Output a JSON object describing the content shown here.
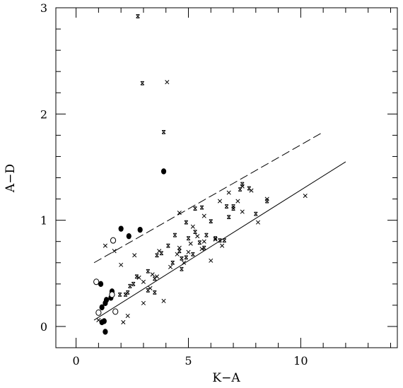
{
  "chart_data": {
    "type": "scatter",
    "title": "",
    "xlabel": "K−A",
    "ylabel": "A−D",
    "xlim": [
      -0.9,
      14.3
    ],
    "ylim": [
      -0.2,
      3.0
    ],
    "x_ticks": [
      0,
      5,
      10
    ],
    "y_ticks": [
      0,
      1,
      2,
      3
    ],
    "x_tick_labels": [
      "0",
      "5",
      "10"
    ],
    "y_tick_labels": [
      "0",
      "1",
      "2",
      "3"
    ],
    "grid": false,
    "legend": "none",
    "series": [
      {
        "marker": "filled-circle",
        "points": [
          [
            2.0,
            0.92
          ],
          [
            2.35,
            0.85
          ],
          [
            2.85,
            0.91
          ],
          [
            3.9,
            1.46
          ],
          [
            1.6,
            0.33
          ],
          [
            1.55,
            0.27
          ],
          [
            1.35,
            0.25
          ],
          [
            1.3,
            0.22
          ],
          [
            1.15,
            0.18
          ],
          [
            1.25,
            0.05
          ],
          [
            1.15,
            0.04
          ],
          [
            1.1,
            0.4
          ],
          [
            1.3,
            -0.05
          ]
        ]
      },
      {
        "marker": "open-circle",
        "points": [
          [
            1.65,
            0.81
          ],
          [
            0.9,
            0.42
          ],
          [
            1.0,
            0.13
          ],
          [
            1.75,
            0.14
          ],
          [
            1.6,
            0.3
          ]
        ]
      },
      {
        "marker": "cross",
        "points": [
          [
            4.05,
            2.3
          ],
          [
            1.3,
            0.76
          ],
          [
            1.7,
            0.71
          ],
          [
            2.0,
            0.58
          ],
          [
            2.6,
            0.67
          ],
          [
            3.0,
            0.42
          ],
          [
            3.3,
            0.36
          ],
          [
            3.6,
            0.47
          ],
          [
            3.9,
            0.24
          ],
          [
            3.0,
            0.22
          ],
          [
            2.3,
            0.1
          ],
          [
            2.1,
            0.04
          ],
          [
            1.0,
            0.06
          ],
          [
            4.2,
            0.56
          ],
          [
            4.6,
            0.74
          ],
          [
            4.8,
            0.6
          ],
          [
            5.1,
            0.78
          ],
          [
            5.4,
            0.85
          ],
          [
            5.7,
            0.8
          ],
          [
            6.0,
            0.62
          ],
          [
            6.5,
            0.76
          ],
          [
            4.6,
            1.07
          ],
          [
            5.7,
            1.04
          ],
          [
            6.4,
            1.18
          ],
          [
            6.8,
            1.26
          ],
          [
            7.2,
            1.18
          ],
          [
            7.4,
            1.08
          ],
          [
            7.8,
            1.28
          ],
          [
            8.1,
            0.98
          ],
          [
            8.5,
            1.2
          ],
          [
            10.2,
            1.23
          ],
          [
            7.4,
            1.32
          ],
          [
            5.2,
            0.94
          ],
          [
            3.7,
            0.71
          ],
          [
            2.8,
            0.46
          ],
          [
            4.5,
            0.68
          ],
          [
            5.0,
            0.7
          ],
          [
            6.2,
            0.82
          ],
          [
            5.6,
            0.73
          ],
          [
            3.4,
            0.49
          ]
        ]
      },
      {
        "marker": "capped-cross",
        "points": [
          [
            2.75,
            2.92
          ],
          [
            2.95,
            2.29
          ],
          [
            3.9,
            1.83
          ],
          [
            1.95,
            0.3
          ],
          [
            2.2,
            0.3
          ],
          [
            2.3,
            0.32
          ],
          [
            2.4,
            0.38
          ],
          [
            2.55,
            0.4
          ],
          [
            2.7,
            0.47
          ],
          [
            3.2,
            0.34
          ],
          [
            3.5,
            0.45
          ],
          [
            3.6,
            0.67
          ],
          [
            3.8,
            0.69
          ],
          [
            4.1,
            0.76
          ],
          [
            4.4,
            0.86
          ],
          [
            4.6,
            0.71
          ],
          [
            4.7,
            0.64
          ],
          [
            4.9,
            0.65
          ],
          [
            5.0,
            0.83
          ],
          [
            5.2,
            0.68
          ],
          [
            5.3,
            0.89
          ],
          [
            5.5,
            0.79
          ],
          [
            5.7,
            0.74
          ],
          [
            5.8,
            0.86
          ],
          [
            6.0,
            0.99
          ],
          [
            6.2,
            0.83
          ],
          [
            6.4,
            0.81
          ],
          [
            6.6,
            0.81
          ],
          [
            6.8,
            1.03
          ],
          [
            7.0,
            1.13
          ],
          [
            7.0,
            1.11
          ],
          [
            7.3,
            1.29
          ],
          [
            7.4,
            1.34
          ],
          [
            7.7,
            1.3
          ],
          [
            8.0,
            1.06
          ],
          [
            8.5,
            1.18
          ],
          [
            6.7,
            1.13
          ],
          [
            5.3,
            1.11
          ],
          [
            5.6,
            1.12
          ],
          [
            4.9,
            0.98
          ],
          [
            4.7,
            0.54
          ],
          [
            3.5,
            0.32
          ],
          [
            3.2,
            0.52
          ],
          [
            4.3,
            0.6
          ]
        ]
      }
    ],
    "lines": [
      {
        "style": "solid",
        "points": [
          [
            0.8,
            0.06
          ],
          [
            12.0,
            1.55
          ]
        ]
      },
      {
        "style": "dashed",
        "points": [
          [
            0.8,
            0.6
          ],
          [
            11.0,
            1.83
          ]
        ]
      }
    ]
  }
}
